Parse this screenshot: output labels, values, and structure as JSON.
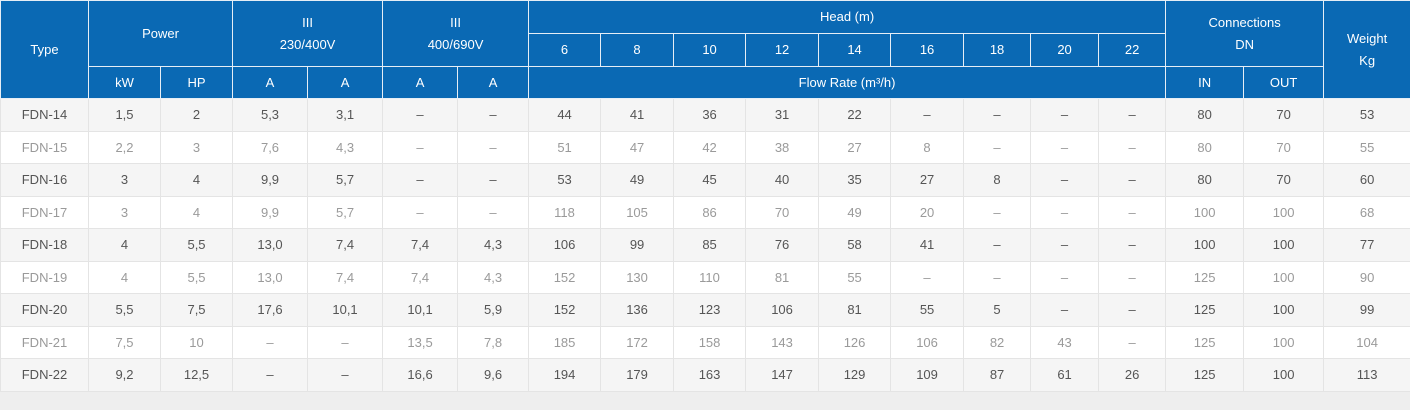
{
  "table": {
    "header": {
      "type": "Type",
      "power": "Power",
      "v1": {
        "phase": "III",
        "voltage": "230/400V"
      },
      "v2": {
        "phase": "III",
        "voltage": "400/690V"
      },
      "head": "Head (m)",
      "heads": [
        "6",
        "8",
        "10",
        "12",
        "14",
        "16",
        "18",
        "20",
        "22"
      ],
      "connections": {
        "title": "Connections",
        "unit": "DN"
      },
      "weight": {
        "title": "Weight",
        "unit": "Kg"
      },
      "units": [
        "kW",
        "HP",
        "A",
        "A",
        "A",
        "A"
      ],
      "flow": "Flow Rate (m³/h)",
      "conn_units": [
        "IN",
        "OUT"
      ]
    },
    "rows": [
      [
        "FDN-14",
        "1,5",
        "2",
        "5,3",
        "3,1",
        "–",
        "–",
        "44",
        "41",
        "36",
        "31",
        "22",
        "–",
        "–",
        "–",
        "–",
        "80",
        "70",
        "53"
      ],
      [
        "FDN-15",
        "2,2",
        "3",
        "7,6",
        "4,3",
        "–",
        "–",
        "51",
        "47",
        "42",
        "38",
        "27",
        "8",
        "–",
        "–",
        "–",
        "80",
        "70",
        "55"
      ],
      [
        "FDN-16",
        "3",
        "4",
        "9,9",
        "5,7",
        "–",
        "–",
        "53",
        "49",
        "45",
        "40",
        "35",
        "27",
        "8",
        "–",
        "–",
        "80",
        "70",
        "60"
      ],
      [
        "FDN-17",
        "3",
        "4",
        "9,9",
        "5,7",
        "–",
        "–",
        "118",
        "105",
        "86",
        "70",
        "49",
        "20",
        "–",
        "–",
        "–",
        "100",
        "100",
        "68"
      ],
      [
        "FDN-18",
        "4",
        "5,5",
        "13,0",
        "7,4",
        "7,4",
        "4,3",
        "106",
        "99",
        "85",
        "76",
        "58",
        "41",
        "–",
        "–",
        "–",
        "100",
        "100",
        "77"
      ],
      [
        "FDN-19",
        "4",
        "5,5",
        "13,0",
        "7,4",
        "7,4",
        "4,3",
        "152",
        "130",
        "110",
        "81",
        "55",
        "–",
        "–",
        "–",
        "–",
        "125",
        "100",
        "90"
      ],
      [
        "FDN-20",
        "5,5",
        "7,5",
        "17,6",
        "10,1",
        "10,1",
        "5,9",
        "152",
        "136",
        "123",
        "106",
        "81",
        "55",
        "5",
        "–",
        "–",
        "125",
        "100",
        "99"
      ],
      [
        "FDN-21",
        "7,5",
        "10",
        "–",
        "–",
        "13,5",
        "7,8",
        "185",
        "172",
        "158",
        "143",
        "126",
        "106",
        "82",
        "43",
        "–",
        "125",
        "100",
        "104"
      ],
      [
        "FDN-22",
        "9,2",
        "12,5",
        "–",
        "–",
        "16,6",
        "9,6",
        "194",
        "179",
        "163",
        "147",
        "129",
        "109",
        "87",
        "61",
        "26",
        "125",
        "100",
        "113"
      ]
    ]
  }
}
